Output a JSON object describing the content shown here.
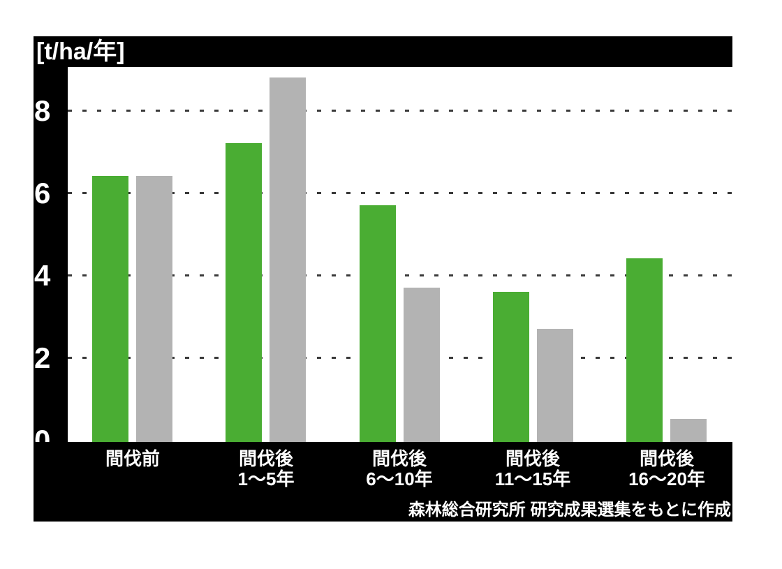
{
  "figure": {
    "unit_label": "[t/ha/年]",
    "source_note": "森林総合研究所 研究成果選集をもとに作成"
  },
  "colors": {
    "band_background": "#000000",
    "plot_background": "#ffffff",
    "green_bar": "#4aad33",
    "gray_bar": "#b3b3b3",
    "gridline": "#3a3a3a",
    "label_text": "#ffffff"
  },
  "chart_data": {
    "type": "bar",
    "title": "",
    "ylabel": "[t/ha/年]",
    "xlabel": "",
    "unit": "t/ha/年",
    "categories": [
      "間伐前",
      "間伐後 1〜5年",
      "間伐後 6〜10年",
      "間伐後 11〜15年",
      "間伐後 16〜20年"
    ],
    "category_lines": [
      [
        "間伐前",
        ""
      ],
      [
        "間伐後",
        "1〜5年"
      ],
      [
        "間伐後",
        "6〜10年"
      ],
      [
        "間伐後",
        "11〜15年"
      ],
      [
        "間伐後",
        "16〜20年"
      ]
    ],
    "series": [
      {
        "name": "green-series",
        "color": "#4aad33",
        "values": [
          6.4,
          7.2,
          5.7,
          3.6,
          4.4
        ]
      },
      {
        "name": "gray-series",
        "color": "#b3b3b3",
        "values": [
          6.4,
          8.8,
          3.7,
          2.7,
          0.5
        ]
      }
    ],
    "y_ticks": [
      0,
      2,
      4,
      6,
      8
    ],
    "ylim": [
      0,
      9.1
    ],
    "grid": "horizontal-dotted",
    "legend_position": "none",
    "source": "森林総合研究所 研究成果選集をもとに作成"
  }
}
